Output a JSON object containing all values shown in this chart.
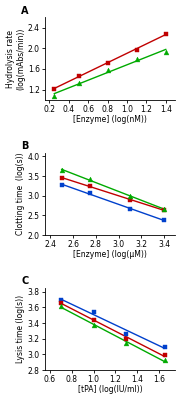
{
  "panel_A": {
    "title": "A",
    "xlabel": "[Enzyme] (log(nM))",
    "ylabel": "Hydrolysis rate\n(log(mAbs/min))",
    "xlim": [
      0.15,
      1.5
    ],
    "ylim": [
      1.0,
      2.6
    ],
    "xticks": [
      0.2,
      0.4,
      0.6,
      0.8,
      1.0,
      1.2,
      1.4
    ],
    "yticks": [
      1.2,
      1.6,
      2.0,
      2.4
    ],
    "lines": [
      {
        "color": "#c00000",
        "marker": "s",
        "x": [
          0.25,
          0.5,
          0.8,
          1.1,
          1.4
        ],
        "y": [
          1.21,
          1.47,
          1.72,
          1.97,
          2.28
        ]
      },
      {
        "color": "#00aa00",
        "marker": "^",
        "x": [
          0.25,
          0.5,
          0.8,
          1.1,
          1.4
        ],
        "y": [
          1.07,
          1.33,
          1.57,
          1.8,
          1.92
        ]
      }
    ]
  },
  "panel_B": {
    "title": "B",
    "xlabel": "[Enzyme] (log(μM))",
    "ylabel": "Clotting time  (log(s))",
    "xlim": [
      2.35,
      3.5
    ],
    "ylim": [
      2.0,
      4.1
    ],
    "xticks": [
      2.4,
      2.6,
      2.8,
      3.0,
      3.2,
      3.4
    ],
    "yticks": [
      2.0,
      2.5,
      3.0,
      3.5,
      4.0
    ],
    "lines": [
      {
        "color": "#0040cc",
        "marker": "s",
        "x": [
          2.5,
          2.75,
          3.1,
          3.4
        ],
        "y": [
          3.28,
          3.06,
          2.67,
          2.37
        ]
      },
      {
        "color": "#c00000",
        "marker": "s",
        "x": [
          2.5,
          2.75,
          3.1,
          3.4
        ],
        "y": [
          3.46,
          3.24,
          2.9,
          2.63
        ]
      },
      {
        "color": "#00aa00",
        "marker": "^",
        "x": [
          2.5,
          2.75,
          3.1,
          3.4
        ],
        "y": [
          3.65,
          3.42,
          3.0,
          2.65
        ]
      }
    ]
  },
  "panel_C": {
    "title": "C",
    "xlabel": "[tPA] (log(IU/ml))",
    "ylabel": "Lysis time (log(s))",
    "xlim": [
      0.55,
      1.75
    ],
    "ylim": [
      2.8,
      3.85
    ],
    "xticks": [
      0.6,
      0.8,
      1.0,
      1.2,
      1.4,
      1.6
    ],
    "yticks": [
      2.8,
      3.0,
      3.2,
      3.4,
      3.6,
      3.8
    ],
    "lines": [
      {
        "color": "#0040cc",
        "marker": "s",
        "x": [
          0.7,
          1.0,
          1.3,
          1.65
        ],
        "y": [
          3.7,
          3.54,
          3.26,
          3.1
        ]
      },
      {
        "color": "#c00000",
        "marker": "s",
        "x": [
          0.7,
          1.0,
          1.3,
          1.65
        ],
        "y": [
          3.66,
          3.44,
          3.2,
          2.99
        ]
      },
      {
        "color": "#00aa00",
        "marker": "^",
        "x": [
          0.7,
          1.0,
          1.3,
          1.65
        ],
        "y": [
          3.62,
          3.37,
          3.14,
          2.93
        ]
      }
    ]
  },
  "background_color": "#ffffff",
  "marker_size": 3.5,
  "linewidth": 1.0,
  "font_size": 5.5,
  "label_font_size": 5.5,
  "title_font_size": 7
}
